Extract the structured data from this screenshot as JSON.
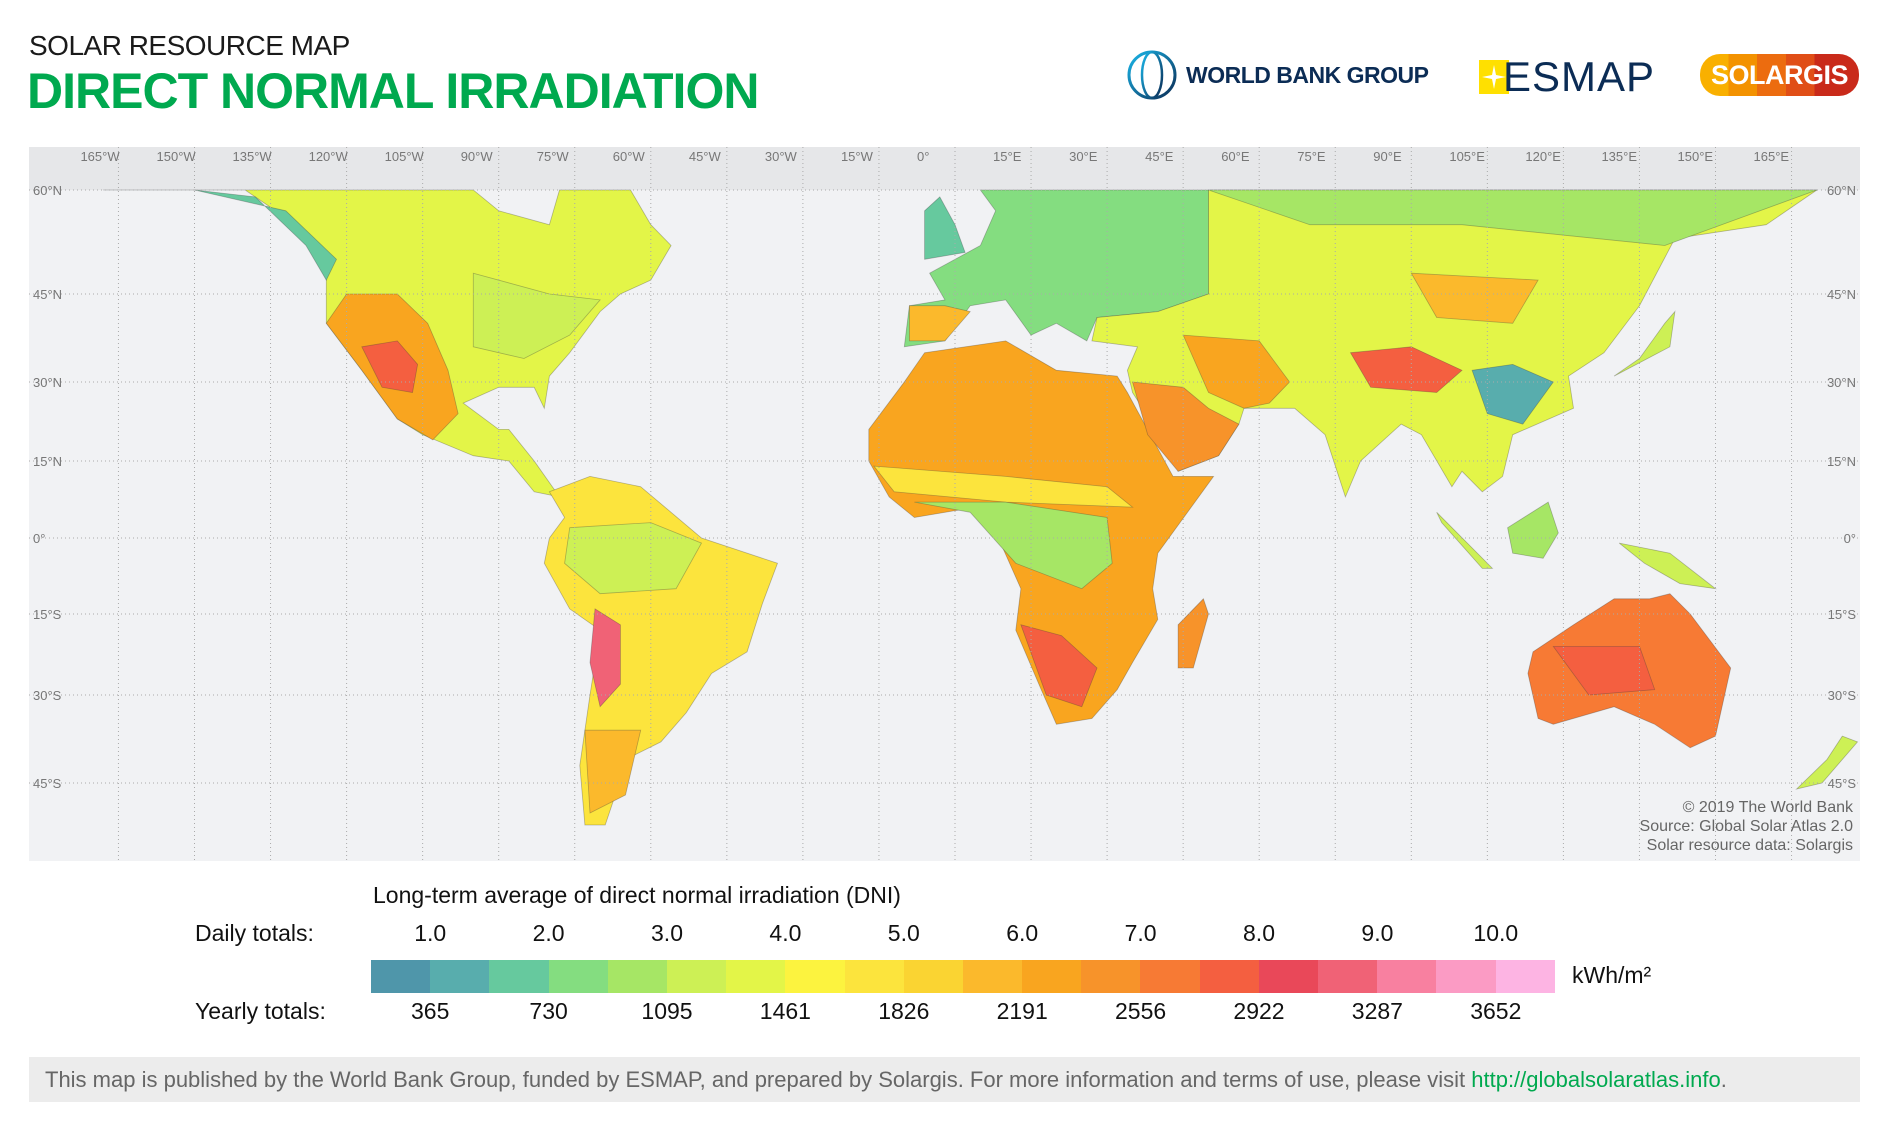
{
  "header": {
    "subtitle": "SOLAR RESOURCE MAP",
    "title": "DIRECT NORMAL IRRADIATION",
    "logos": {
      "world_bank": "WORLD BANK GROUP",
      "esmap": "ESMAP",
      "solargis": "SOLARGIS"
    }
  },
  "map": {
    "longitude_labels": [
      "165°W",
      "150°W",
      "135°W",
      "120°W",
      "105°W",
      "90°W",
      "75°W",
      "60°W",
      "45°W",
      "30°W",
      "15°W",
      "0°",
      "15°E",
      "30°E",
      "45°E",
      "60°E",
      "75°E",
      "90°E",
      "105°E",
      "120°E",
      "135°E",
      "150°E",
      "165°E"
    ],
    "latitude_labels": [
      "60°N",
      "45°N",
      "30°N",
      "15°N",
      "0°",
      "15°S",
      "30°S",
      "45°S"
    ],
    "credits": [
      "© 2019 The World Bank",
      "Source: Global Solar Atlas 2.0",
      "Solar resource data: Solargis"
    ]
  },
  "legend": {
    "title": "Long-term average of direct normal irradiation (DNI)",
    "daily_label": "Daily totals:",
    "yearly_label": "Yearly totals:",
    "daily_ticks": [
      "1.0",
      "2.0",
      "3.0",
      "4.0",
      "5.0",
      "6.0",
      "7.0",
      "8.0",
      "9.0",
      "10.0"
    ],
    "yearly_ticks": [
      "365",
      "730",
      "1095",
      "1461",
      "1826",
      "2191",
      "2556",
      "2922",
      "3287",
      "3652"
    ],
    "unit": "kWh/m²",
    "colors": [
      "#4f96aa",
      "#58adad",
      "#66c99e",
      "#84dd80",
      "#a6e665",
      "#cdf055",
      "#e3f548",
      "#fcf33f",
      "#fce43d",
      "#fad432",
      "#fbb92c",
      "#f9a51f",
      "#f7932a",
      "#f77a34",
      "#f45f40",
      "#e94859",
      "#f06276",
      "#f880a0",
      "#fb9bc4",
      "#fdb4e3"
    ]
  },
  "footer": {
    "text": "This map is published by the World Bank Group, funded by ESMAP, and prepared by Solargis. For more information and terms of use, please visit ",
    "link": "http://globalsolaratlas.info",
    "end": "."
  }
}
